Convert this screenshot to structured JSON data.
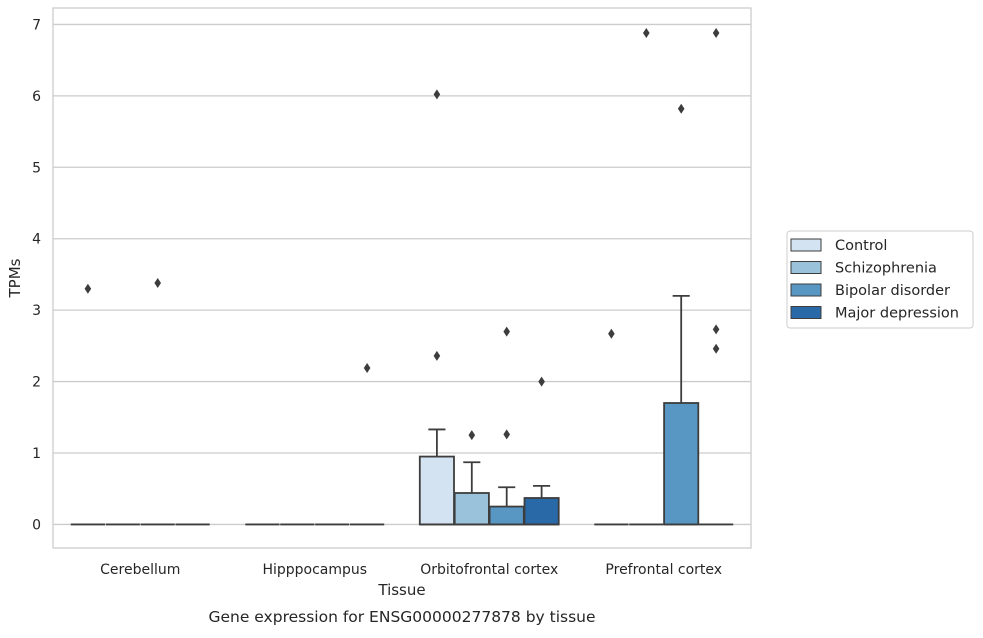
{
  "chart_data": {
    "type": "box",
    "caption": "Gene expression for ENSG00000277878 by tissue",
    "xlabel": "Tissue",
    "ylabel": "TPMs",
    "ylim": [
      -0.33,
      7.23
    ],
    "yticks": [
      0,
      1,
      2,
      3,
      4,
      5,
      6,
      7
    ],
    "grid": true,
    "legend_position": "right",
    "categories": [
      "Cerebellum",
      "Hipppocampus",
      "Orbitofrontal cortex",
      "Prefrontal cortex"
    ],
    "series": [
      {
        "name": "Control",
        "color": "#d4e3f1",
        "boxes": [
          {
            "q1": 0,
            "median": 0,
            "q3": 0,
            "whisker_low": 0,
            "whisker_high": 0,
            "outliers": [
              3.3
            ]
          },
          {
            "q1": 0,
            "median": 0,
            "q3": 0,
            "whisker_low": 0,
            "whisker_high": 0,
            "outliers": []
          },
          {
            "q1": 0,
            "median": 0,
            "q3": 0.95,
            "whisker_low": 0,
            "whisker_high": 1.33,
            "outliers": [
              6.02,
              2.36
            ]
          },
          {
            "q1": 0,
            "median": 0,
            "q3": 0,
            "whisker_low": 0,
            "whisker_high": 0,
            "outliers": [
              2.67
            ]
          }
        ]
      },
      {
        "name": "Schizophrenia",
        "color": "#9bc2db",
        "boxes": [
          {
            "q1": 0,
            "median": 0,
            "q3": 0,
            "whisker_low": 0,
            "whisker_high": 0,
            "outliers": []
          },
          {
            "q1": 0,
            "median": 0,
            "q3": 0,
            "whisker_low": 0,
            "whisker_high": 0,
            "outliers": []
          },
          {
            "q1": 0,
            "median": 0,
            "q3": 0.44,
            "whisker_low": 0,
            "whisker_high": 0.87,
            "outliers": [
              1.25
            ]
          },
          {
            "q1": 0,
            "median": 0,
            "q3": 0,
            "whisker_low": 0,
            "whisker_high": 0,
            "outliers": [
              6.88
            ]
          }
        ]
      },
      {
        "name": "Bipolar disorder",
        "color": "#5896c4",
        "boxes": [
          {
            "q1": 0,
            "median": 0,
            "q3": 0,
            "whisker_low": 0,
            "whisker_high": 0,
            "outliers": [
              3.38
            ]
          },
          {
            "q1": 0,
            "median": 0,
            "q3": 0,
            "whisker_low": 0,
            "whisker_high": 0,
            "outliers": []
          },
          {
            "q1": 0,
            "median": 0,
            "q3": 0.25,
            "whisker_low": 0,
            "whisker_high": 0.52,
            "outliers": [
              2.7,
              1.26
            ]
          },
          {
            "q1": 0,
            "median": 0,
            "q3": 1.7,
            "whisker_low": 0,
            "whisker_high": 3.2,
            "outliers": [
              5.82
            ]
          }
        ]
      },
      {
        "name": "Major depression",
        "color": "#2a69a8",
        "boxes": [
          {
            "q1": 0,
            "median": 0,
            "q3": 0,
            "whisker_low": 0,
            "whisker_high": 0,
            "outliers": []
          },
          {
            "q1": 0,
            "median": 0,
            "q3": 0,
            "whisker_low": 0,
            "whisker_high": 0,
            "outliers": [
              2.19
            ]
          },
          {
            "q1": 0,
            "median": 0,
            "q3": 0.37,
            "whisker_low": 0,
            "whisker_high": 0.54,
            "outliers": [
              2.0
            ]
          },
          {
            "q1": 0,
            "median": 0,
            "q3": 0,
            "whisker_low": 0,
            "whisker_high": 0,
            "outliers": [
              6.88,
              2.73,
              2.46
            ]
          }
        ]
      }
    ]
  }
}
